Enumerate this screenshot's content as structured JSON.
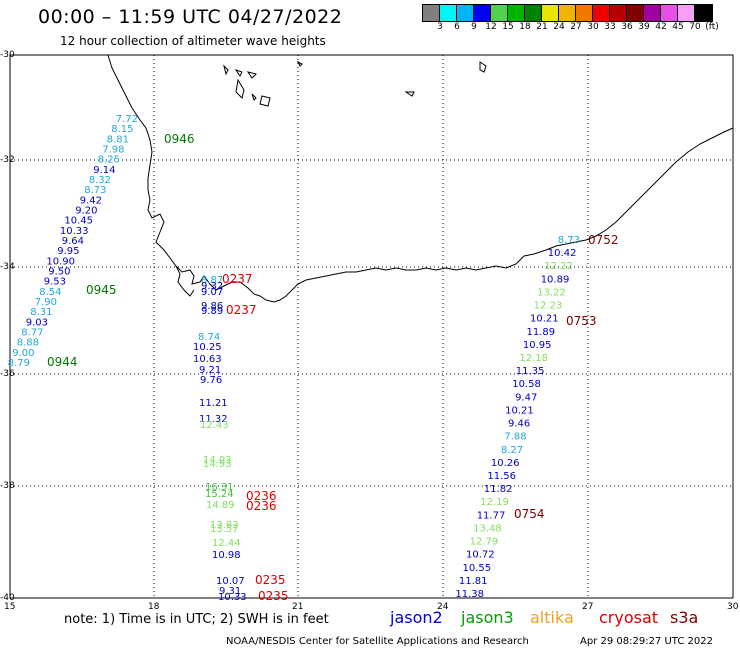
{
  "header": {
    "title": "00:00 – 11:59 UTC 04/27/2022",
    "subtitle": "12 hour collection of altimeter wave heights"
  },
  "colorbar": {
    "colors": [
      "#7f7f7f",
      "#00f5f5",
      "#00b4f5",
      "#0000f5",
      "#50d250",
      "#00b400",
      "#008200",
      "#e6e600",
      "#f0b400",
      "#f07800",
      "#f00000",
      "#b40000",
      "#820000",
      "#a000a0",
      "#e650e6",
      "#f5a0f5",
      "#000000"
    ],
    "labels": [
      "3",
      "6",
      "9",
      "12",
      "15",
      "18",
      "21",
      "24",
      "27",
      "30",
      "33",
      "36",
      "39",
      "42",
      "45",
      "70",
      "(ft)"
    ]
  },
  "axes": {
    "lon": [
      "15",
      "18",
      "21",
      "24",
      "27",
      "30"
    ],
    "lat": [
      "-30",
      "-32",
      "-34",
      "-36",
      "-38",
      "-40"
    ]
  },
  "passes": {
    "west": {
      "times": [
        {
          "t": "0946",
          "c": "#007a00"
        },
        {
          "t": "0945",
          "c": "#007a00"
        },
        {
          "t": "0944",
          "c": "#007a00"
        }
      ],
      "values": [
        {
          "v": "7.72",
          "c": "#20a8d8"
        },
        {
          "v": "8.15",
          "c": "#20a8d8"
        },
        {
          "v": "8.81",
          "c": "#20a8d8"
        },
        {
          "v": "7.98",
          "c": "#20a8d8"
        },
        {
          "v": "8.25",
          "c": "#20a8d8"
        },
        {
          "v": "9.14",
          "c": "#0000c0"
        },
        {
          "v": "8.32",
          "c": "#20a8d8"
        },
        {
          "v": "8.73",
          "c": "#20a8d8"
        },
        {
          "v": "9.42",
          "c": "#0000c0"
        },
        {
          "v": "9.20",
          "c": "#0000c0"
        },
        {
          "v": "10.45",
          "c": "#0000c0"
        },
        {
          "v": "10.33",
          "c": "#0000c0"
        },
        {
          "v": "9.64",
          "c": "#0000c0"
        },
        {
          "v": "9.95",
          "c": "#0000c0"
        },
        {
          "v": "10.90",
          "c": "#0000c0"
        },
        {
          "v": "9.50",
          "c": "#0000c0"
        },
        {
          "v": "9.53",
          "c": "#0000c0"
        },
        {
          "v": "8.54",
          "c": "#20a8d8"
        },
        {
          "v": "7.90",
          "c": "#20a8d8"
        },
        {
          "v": "8.31",
          "c": "#20a8d8"
        },
        {
          "v": "9.03",
          "c": "#0000c0"
        },
        {
          "v": "8.77",
          "c": "#20a8d8"
        },
        {
          "v": "8.88",
          "c": "#20a8d8"
        },
        {
          "v": "9.00",
          "c": "#20a8d8"
        },
        {
          "v": "8.79",
          "c": "#20a8d8"
        }
      ]
    },
    "middle": {
      "times": [
        {
          "t": "0237",
          "c": "#dd0000"
        },
        {
          "t": "0237",
          "c": "#dd0000"
        },
        {
          "t": "0236",
          "c": "#dd0000"
        },
        {
          "t": "0236",
          "c": "#dd0000"
        },
        {
          "t": "0235",
          "c": "#dd0000"
        },
        {
          "t": "0235",
          "c": "#dd0000"
        }
      ],
      "values": [
        {
          "v": "8.87",
          "c": "#20a8d8"
        },
        {
          "v": "9.32",
          "c": "#0000c0"
        },
        {
          "v": "9.07",
          "c": "#0000c0"
        },
        {
          "v": "9.86",
          "c": "#0000c0"
        },
        {
          "v": "9.89",
          "c": "#0000c0"
        },
        {
          "v": "8.74",
          "c": "#20a8d8"
        },
        {
          "v": "10.25",
          "c": "#0000c0"
        },
        {
          "v": "10.63",
          "c": "#0000c0"
        },
        {
          "v": "9.21",
          "c": "#0000c0"
        },
        {
          "v": "9.76",
          "c": "#0000c0"
        },
        {
          "v": "11.21",
          "c": "#0000c0"
        },
        {
          "v": "11.32",
          "c": "#0000c0"
        },
        {
          "v": "12.43",
          "c": "#80e060"
        },
        {
          "v": "14.03",
          "c": "#80e060"
        },
        {
          "v": "14.93",
          "c": "#80e060"
        },
        {
          "v": "16.31",
          "c": "#40c040"
        },
        {
          "v": "15.24",
          "c": "#40c040"
        },
        {
          "v": "14.89",
          "c": "#80e060"
        },
        {
          "v": "13.83",
          "c": "#80e060"
        },
        {
          "v": "13.57",
          "c": "#80e060"
        },
        {
          "v": "12.44",
          "c": "#80e060"
        },
        {
          "v": "10.98",
          "c": "#0000c0"
        },
        {
          "v": "10.07",
          "c": "#0000c0"
        },
        {
          "v": "9.31",
          "c": "#0000c0"
        },
        {
          "v": "10.33",
          "c": "#0000c0"
        }
      ]
    },
    "east": {
      "times": [
        {
          "t": "0752",
          "c": "#800000"
        },
        {
          "t": "0753",
          "c": "#800000"
        },
        {
          "t": "0754",
          "c": "#800000"
        }
      ],
      "values": [
        {
          "v": "8.73",
          "c": "#20a8d8"
        },
        {
          "v": "10.42",
          "c": "#0000c0"
        },
        {
          "v": "12.22",
          "c": "#80e060"
        },
        {
          "v": "10.89",
          "c": "#0000c0"
        },
        {
          "v": "13.22",
          "c": "#80e060"
        },
        {
          "v": "12.23",
          "c": "#80e060"
        },
        {
          "v": "10.21",
          "c": "#0000c0"
        },
        {
          "v": "11.89",
          "c": "#0000c0"
        },
        {
          "v": "10.95",
          "c": "#0000c0"
        },
        {
          "v": "12.18",
          "c": "#80e060"
        },
        {
          "v": "11.35",
          "c": "#0000c0"
        },
        {
          "v": "10.58",
          "c": "#0000c0"
        },
        {
          "v": "9.47",
          "c": "#0000c0"
        },
        {
          "v": "10.21",
          "c": "#0000c0"
        },
        {
          "v": "9.46",
          "c": "#0000c0"
        },
        {
          "v": "7.88",
          "c": "#20a8d8"
        },
        {
          "v": "8.27",
          "c": "#20a8d8"
        },
        {
          "v": "10.26",
          "c": "#0000c0"
        },
        {
          "v": "11.56",
          "c": "#0000c0"
        },
        {
          "v": "11.82",
          "c": "#0000c0"
        },
        {
          "v": "12.19",
          "c": "#80e060"
        },
        {
          "v": "11.77",
          "c": "#0000c0"
        },
        {
          "v": "13.48",
          "c": "#80e060"
        },
        {
          "v": "12.79",
          "c": "#80e060"
        },
        {
          "v": "10.72",
          "c": "#0000c0"
        },
        {
          "v": "10.55",
          "c": "#0000c0"
        },
        {
          "v": "11.81",
          "c": "#0000c0"
        },
        {
          "v": "11.38",
          "c": "#0000c0"
        }
      ]
    }
  },
  "footer": {
    "note": "note:  1) Time is in UTC;  2) SWH is in feet",
    "satellites": [
      {
        "name": "jason2",
        "color": "#0000dd"
      },
      {
        "name": "jason3",
        "color": "#00a000"
      },
      {
        "name": "altika",
        "color": "#f0a020"
      },
      {
        "name": "cryosat",
        "color": "#dd0000"
      },
      {
        "name": "s3a",
        "color": "#800000"
      }
    ],
    "credit": "NOAA/NESDIS Center for Satellite Applications and Research",
    "datestamp": "Apr 29 08:29:27 UTC 2022"
  }
}
